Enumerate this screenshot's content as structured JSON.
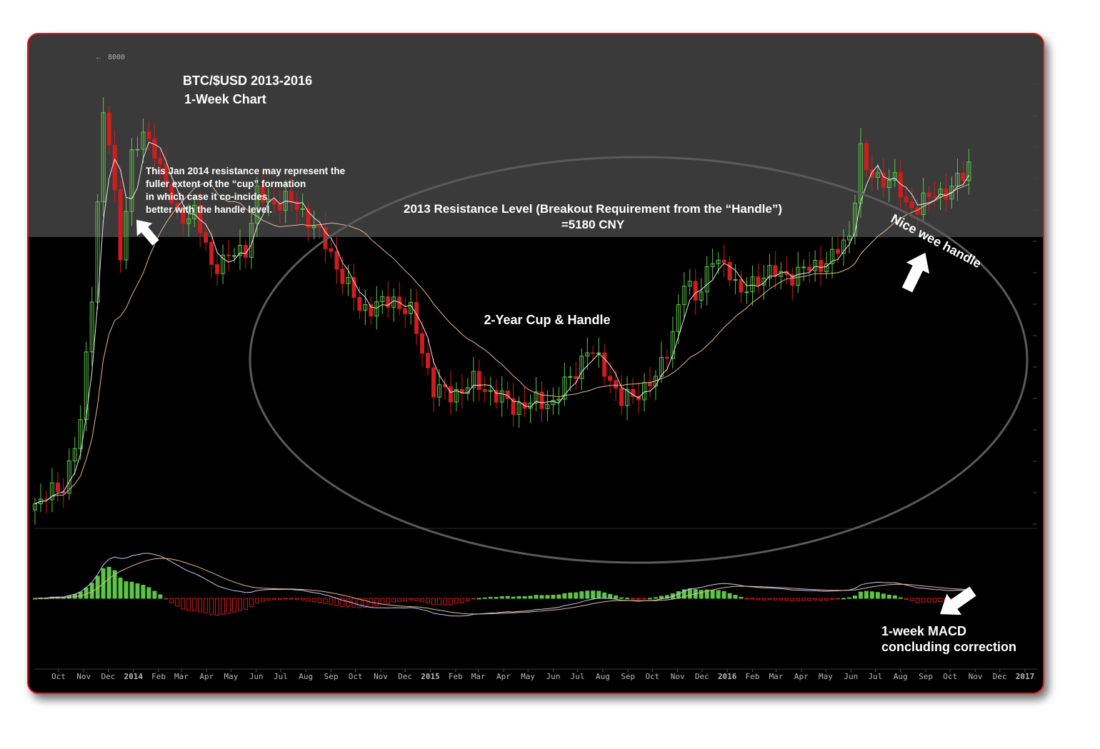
{
  "chart_data": {
    "type": "candlestick",
    "title": "BTC/$USD 2013-2016",
    "subtitle": "1-Week Chart",
    "price_scale_label": "8000",
    "x_ticks": [
      {
        "label": "Oct",
        "date": "2013-10"
      },
      {
        "label": "Nov",
        "date": "2013-11"
      },
      {
        "label": "Dec",
        "date": "2013-12"
      },
      {
        "label": "2014",
        "date": "2014-01",
        "bold": true
      },
      {
        "label": "Feb",
        "date": "2014-02"
      },
      {
        "label": "Mar",
        "date": "2014-03"
      },
      {
        "label": "Apr",
        "date": "2014-04"
      },
      {
        "label": "May",
        "date": "2014-05"
      },
      {
        "label": "Jun",
        "date": "2014-06"
      },
      {
        "label": "Jul",
        "date": "2014-07"
      },
      {
        "label": "Aug",
        "date": "2014-08"
      },
      {
        "label": "Sep",
        "date": "2014-09"
      },
      {
        "label": "Oct",
        "date": "2014-10"
      },
      {
        "label": "Nov",
        "date": "2014-11"
      },
      {
        "label": "Dec",
        "date": "2014-12"
      },
      {
        "label": "2015",
        "date": "2015-01",
        "bold": true
      },
      {
        "label": "Feb",
        "date": "2015-02"
      },
      {
        "label": "Mar",
        "date": "2015-03"
      },
      {
        "label": "Apr",
        "date": "2015-04"
      },
      {
        "label": "May",
        "date": "2015-05"
      },
      {
        "label": "Jun",
        "date": "2015-06"
      },
      {
        "label": "Jul",
        "date": "2015-07"
      },
      {
        "label": "Aug",
        "date": "2015-08"
      },
      {
        "label": "Sep",
        "date": "2015-09"
      },
      {
        "label": "Oct",
        "date": "2015-10"
      },
      {
        "label": "Nov",
        "date": "2015-11"
      },
      {
        "label": "Dec",
        "date": "2015-12"
      },
      {
        "label": "2016",
        "date": "2016-01",
        "bold": true
      },
      {
        "label": "Feb",
        "date": "2016-02"
      },
      {
        "label": "Mar",
        "date": "2016-03"
      },
      {
        "label": "Apr",
        "date": "2016-04"
      },
      {
        "label": "May",
        "date": "2016-05"
      },
      {
        "label": "Jun",
        "date": "2016-06"
      },
      {
        "label": "Jul",
        "date": "2016-07"
      },
      {
        "label": "Aug",
        "date": "2016-08"
      },
      {
        "label": "Sep",
        "date": "2016-09"
      },
      {
        "label": "Oct",
        "date": "2016-10"
      },
      {
        "label": "Nov",
        "date": "2016-11"
      },
      {
        "label": "Dec",
        "date": "2016-12"
      },
      {
        "label": "2017",
        "date": "2017-01",
        "bold": true
      }
    ],
    "price_keypoints": [
      {
        "date": "2013-09-02",
        "close": 880
      },
      {
        "date": "2013-10-07",
        "close": 960
      },
      {
        "date": "2013-10-28",
        "close": 1300
      },
      {
        "date": "2013-11-11",
        "close": 2500
      },
      {
        "date": "2013-11-25",
        "close": 6000
      },
      {
        "date": "2013-12-02",
        "close": 5200
      },
      {
        "date": "2013-12-16",
        "close": 3000
      },
      {
        "date": "2013-12-30",
        "close": 4900
      },
      {
        "date": "2014-01-13",
        "close": 5350
      },
      {
        "date": "2014-01-27",
        "close": 5100
      },
      {
        "date": "2014-02-10",
        "close": 4200
      },
      {
        "date": "2014-02-24",
        "close": 3600
      },
      {
        "date": "2014-03-17",
        "close": 3700
      },
      {
        "date": "2014-04-07",
        "close": 2850
      },
      {
        "date": "2014-04-28",
        "close": 2950
      },
      {
        "date": "2014-05-19",
        "close": 3100
      },
      {
        "date": "2014-06-02",
        "close": 4050
      },
      {
        "date": "2014-06-16",
        "close": 3850
      },
      {
        "date": "2014-07-07",
        "close": 3950
      },
      {
        "date": "2014-08-04",
        "close": 3600
      },
      {
        "date": "2014-08-25",
        "close": 3150
      },
      {
        "date": "2014-09-15",
        "close": 2700
      },
      {
        "date": "2014-10-06",
        "close": 2300
      },
      {
        "date": "2014-11-03",
        "close": 2350
      },
      {
        "date": "2014-11-17",
        "close": 2400
      },
      {
        "date": "2014-12-08",
        "close": 2250
      },
      {
        "date": "2015-01-05",
        "close": 1550
      },
      {
        "date": "2015-01-26",
        "close": 1500
      },
      {
        "date": "2015-02-23",
        "close": 1600
      },
      {
        "date": "2015-03-23",
        "close": 1500
      },
      {
        "date": "2015-04-13",
        "close": 1420
      },
      {
        "date": "2015-05-11",
        "close": 1450
      },
      {
        "date": "2015-06-01",
        "close": 1450
      },
      {
        "date": "2015-06-29",
        "close": 1700
      },
      {
        "date": "2015-07-13",
        "close": 1880
      },
      {
        "date": "2015-08-03",
        "close": 1720
      },
      {
        "date": "2015-08-24",
        "close": 1450
      },
      {
        "date": "2015-09-14",
        "close": 1530
      },
      {
        "date": "2015-10-05",
        "close": 1620
      },
      {
        "date": "2015-10-26",
        "close": 2050
      },
      {
        "date": "2015-11-09",
        "close": 2600
      },
      {
        "date": "2015-11-23",
        "close": 2450
      },
      {
        "date": "2015-12-14",
        "close": 2900
      },
      {
        "date": "2016-01-04",
        "close": 2800
      },
      {
        "date": "2016-01-18",
        "close": 2450
      },
      {
        "date": "2016-02-15",
        "close": 2750
      },
      {
        "date": "2016-03-14",
        "close": 2700
      },
      {
        "date": "2016-04-11",
        "close": 2800
      },
      {
        "date": "2016-05-09",
        "close": 2950
      },
      {
        "date": "2016-05-30",
        "close": 3300
      },
      {
        "date": "2016-06-13",
        "close": 5000
      },
      {
        "date": "2016-06-20",
        "close": 4500
      },
      {
        "date": "2016-07-04",
        "close": 4400
      },
      {
        "date": "2016-07-25",
        "close": 4300
      },
      {
        "date": "2016-08-08",
        "close": 3850
      },
      {
        "date": "2016-08-22",
        "close": 3800
      },
      {
        "date": "2016-09-12",
        "close": 4050
      },
      {
        "date": "2016-10-03",
        "close": 4150
      },
      {
        "date": "2016-10-17",
        "close": 4450
      },
      {
        "date": "2016-10-24",
        "close": 4700
      }
    ],
    "indicator": {
      "name": "1-week MACD"
    },
    "annotations": {
      "resistance_note": [
        "This Jan 2014 resistance may represent the",
        "fuller extent of the “cup” formation",
        "in which case it co-incides",
        "better with the handle level."
      ],
      "resistance_level_line1": "2013 Resistance Level (Breakout  Requirement from the “Handle”)",
      "resistance_level_line2": "=5180 CNY",
      "resistance_value": 5180,
      "cup_handle": "2-Year Cup & Handle",
      "handle_note": "Nice wee handle",
      "macd_note_line1": "1-week MACD",
      "macd_note_line2": "concluding correction"
    },
    "colors": {
      "up": "#5cc447",
      "down": "#d01c1c",
      "ma_fast": "#e8e8f0",
      "ma_slow": "#e8b890",
      "frame": "#e01818",
      "resistance_band": "#3a3a3a"
    }
  }
}
